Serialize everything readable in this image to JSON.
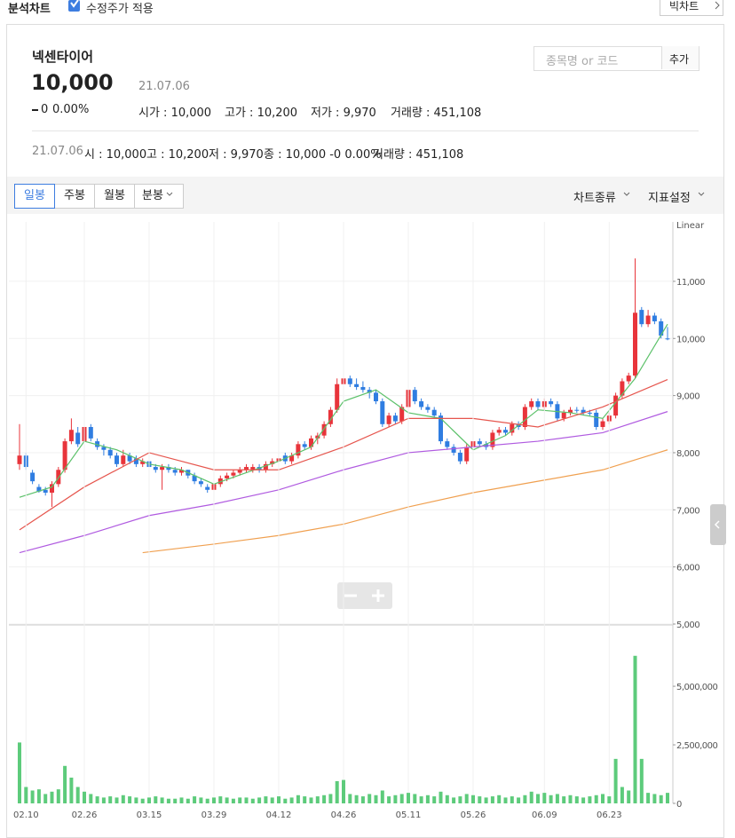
{
  "top": {
    "title": "분석차트",
    "checkbox": "수정주가 적용",
    "button": "빅차트"
  },
  "stock": {
    "name": "넥센타이어",
    "price": "10,000",
    "date": "21.07.06",
    "change": "0",
    "change_pct": "0.00%",
    "stats": [
      "시가 : 10,000",
      "고가 : 10,200",
      "저가 : 9,970",
      "거래량 : 451,108"
    ]
  },
  "search": {
    "placeholder": "종목명 or 코드",
    "button": "추가"
  },
  "ohlc_row": {
    "date": "21.07.06",
    "items": [
      "시 : 10,000",
      "고 : 10,200",
      "저 : 9,970",
      "종 : 10,000 -0 0.00%",
      "거래량 : 451,108"
    ]
  },
  "tabs": {
    "left": [
      "일봉",
      "주봉",
      "월봉",
      "분봉"
    ],
    "right": [
      "차트종류",
      "지표설정"
    ]
  },
  "chart_data": [
    {
      "type": "candlestick",
      "scale_label": "Linear",
      "up_color": "#e8343b",
      "down_color": "#2f7de1",
      "ylim": [
        5000,
        12040
      ],
      "yticks": [
        {
          "value": 5000,
          "label": "5,000"
        },
        {
          "value": 6000,
          "label": "6,000"
        },
        {
          "value": 7000,
          "label": "7,000"
        },
        {
          "value": 8000,
          "label": "8,000"
        },
        {
          "value": 9000,
          "label": "9,000"
        },
        {
          "value": 10000,
          "label": "10,000"
        },
        {
          "value": 11000,
          "label": "11,000"
        }
      ],
      "grid": true,
      "ohlc": [
        [
          7800,
          8500,
          7700,
          7950
        ],
        [
          7950,
          8000,
          7700,
          7750
        ],
        [
          7650,
          7700,
          7450,
          7500
        ],
        [
          7400,
          7450,
          7300,
          7320
        ],
        [
          7350,
          7400,
          7250,
          7300
        ],
        [
          7300,
          7500,
          7050,
          7450
        ],
        [
          7450,
          7750,
          7400,
          7700
        ],
        [
          7700,
          8250,
          7650,
          8200
        ],
        [
          8200,
          8600,
          8150,
          8400
        ],
        [
          8350,
          8450,
          8100,
          8150
        ],
        [
          8200,
          8500,
          8150,
          8450
        ],
        [
          8450,
          8500,
          8200,
          8250
        ],
        [
          8200,
          8250,
          8050,
          8100
        ],
        [
          8100,
          8150,
          7950,
          8050
        ],
        [
          8050,
          8100,
          7900,
          7950
        ],
        [
          7950,
          8000,
          7750,
          7800
        ],
        [
          7800,
          8050,
          7750,
          7950
        ],
        [
          7950,
          8000,
          7800,
          7850
        ],
        [
          7900,
          7950,
          7750,
          7800
        ],
        [
          7800,
          7900,
          7750,
          7850
        ],
        [
          7850,
          7900,
          7700,
          7750
        ],
        [
          7750,
          7800,
          7650,
          7700
        ],
        [
          7700,
          7800,
          7350,
          7750
        ],
        [
          7750,
          7800,
          7650,
          7700
        ],
        [
          7700,
          7750,
          7600,
          7650
        ],
        [
          7650,
          7750,
          7600,
          7700
        ],
        [
          7700,
          7700,
          7550,
          7600
        ],
        [
          7600,
          7650,
          7450,
          7500
        ],
        [
          7500,
          7550,
          7400,
          7450
        ],
        [
          7400,
          7450,
          7300,
          7350
        ],
        [
          7350,
          7500,
          7300,
          7450
        ],
        [
          7450,
          7600,
          7400,
          7550
        ],
        [
          7550,
          7650,
          7500,
          7600
        ],
        [
          7600,
          7700,
          7550,
          7650
        ],
        [
          7650,
          7750,
          7600,
          7700
        ],
        [
          7700,
          7800,
          7650,
          7750
        ],
        [
          7700,
          7800,
          7650,
          7750
        ],
        [
          7750,
          7800,
          7650,
          7700
        ],
        [
          7700,
          7850,
          7650,
          7800
        ],
        [
          7800,
          7900,
          7750,
          7850
        ],
        [
          7850,
          7950,
          7800,
          7900
        ],
        [
          7950,
          8000,
          7800,
          7850
        ],
        [
          7850,
          8000,
          7800,
          7950
        ],
        [
          7950,
          8200,
          7900,
          8150
        ],
        [
          8150,
          8200,
          8050,
          8100
        ],
        [
          8100,
          8300,
          8050,
          8250
        ],
        [
          8250,
          8350,
          8150,
          8300
        ],
        [
          8300,
          8550,
          8250,
          8500
        ],
        [
          8500,
          8800,
          8450,
          8750
        ],
        [
          8750,
          9300,
          8700,
          9200
        ],
        [
          9200,
          9400,
          9150,
          9300
        ],
        [
          9300,
          9350,
          9150,
          9200
        ],
        [
          9200,
          9300,
          9100,
          9150
        ],
        [
          9150,
          9250,
          9050,
          9100
        ],
        [
          9100,
          9150,
          8950,
          9050
        ],
        [
          9050,
          9100,
          8850,
          8900
        ],
        [
          8900,
          8950,
          8450,
          8500
        ],
        [
          8500,
          8700,
          8450,
          8650
        ],
        [
          8650,
          8700,
          8500,
          8550
        ],
        [
          8550,
          8850,
          8500,
          8800
        ],
        [
          8800,
          9150,
          8750,
          9100
        ],
        [
          9100,
          9150,
          8850,
          8900
        ],
        [
          8900,
          8950,
          8750,
          8800
        ],
        [
          8800,
          8850,
          8700,
          8750
        ],
        [
          8750,
          8800,
          8600,
          8650
        ],
        [
          8650,
          8700,
          8150,
          8200
        ],
        [
          8200,
          8250,
          8050,
          8100
        ],
        [
          8100,
          8150,
          7950,
          8000
        ],
        [
          8000,
          8050,
          7800,
          7850
        ],
        [
          7850,
          8150,
          7800,
          8100
        ],
        [
          8100,
          8250,
          8050,
          8200
        ],
        [
          8200,
          8250,
          8100,
          8150
        ],
        [
          8150,
          8200,
          8050,
          8100
        ],
        [
          8100,
          8400,
          8050,
          8350
        ],
        [
          8350,
          8450,
          8300,
          8400
        ],
        [
          8400,
          8450,
          8300,
          8350
        ],
        [
          8350,
          8550,
          8300,
          8500
        ],
        [
          8500,
          8550,
          8400,
          8450
        ],
        [
          8450,
          8850,
          8400,
          8800
        ],
        [
          8800,
          8950,
          8750,
          8900
        ],
        [
          8900,
          8950,
          8750,
          8800
        ],
        [
          8800,
          8950,
          8750,
          8900
        ],
        [
          8900,
          8950,
          8800,
          8850
        ],
        [
          8850,
          8900,
          8550,
          8600
        ],
        [
          8600,
          8750,
          8550,
          8700
        ],
        [
          8700,
          8800,
          8650,
          8750
        ],
        [
          8750,
          8800,
          8700,
          8750
        ],
        [
          8750,
          8800,
          8650,
          8700
        ],
        [
          8700,
          8750,
          8650,
          8700
        ],
        [
          8700,
          8750,
          8400,
          8450
        ],
        [
          8450,
          8600,
          8400,
          8550
        ],
        [
          8550,
          8700,
          8500,
          8650
        ],
        [
          8650,
          9050,
          8600,
          9000
        ],
        [
          9000,
          9300,
          8950,
          9250
        ],
        [
          9250,
          9400,
          9200,
          9350
        ],
        [
          9350,
          11400,
          9300,
          10450
        ],
        [
          10500,
          10550,
          10200,
          10250
        ],
        [
          10250,
          10500,
          10200,
          10400
        ],
        [
          10400,
          10450,
          10250,
          10300
        ],
        [
          10300,
          10350,
          10000,
          10050
        ],
        [
          10000,
          10200,
          9970,
          10000
        ]
      ],
      "lines": [
        {
          "color": "#5cc16a",
          "x": [
            0,
            5,
            10,
            15,
            20,
            25,
            30,
            35,
            40,
            45,
            50,
            55,
            60,
            65,
            70,
            75,
            80,
            85,
            90,
            95,
            100
          ],
          "values": [
            7220,
            7400,
            8200,
            8050,
            7800,
            7700,
            7450,
            7650,
            7850,
            8100,
            8900,
            9100,
            8700,
            8600,
            8050,
            8300,
            8750,
            8700,
            8600,
            9300,
            10250
          ]
        },
        {
          "color": "#e6564e",
          "x": [
            0,
            10,
            20,
            30,
            40,
            50,
            60,
            70,
            80,
            90,
            100
          ],
          "values": [
            6650,
            7400,
            8000,
            7700,
            7700,
            8100,
            8600,
            8600,
            8450,
            8800,
            9280
          ]
        },
        {
          "color": "#b05be0",
          "x": [
            0,
            10,
            20,
            30,
            40,
            50,
            60,
            70,
            80,
            90,
            100
          ],
          "values": [
            6250,
            6550,
            6900,
            7100,
            7350,
            7700,
            8000,
            8100,
            8200,
            8350,
            8720
          ]
        },
        {
          "color": "#f0a050",
          "x": [
            19,
            30,
            40,
            50,
            60,
            70,
            80,
            90,
            100
          ],
          "values": [
            6250,
            6400,
            6550,
            6750,
            7050,
            7300,
            7500,
            7700,
            8050
          ]
        }
      ]
    },
    {
      "type": "bar",
      "color": "#5dcb7b",
      "ylim": [
        0,
        7580000
      ],
      "yticks": [
        0,
        {
          "value": 2500000,
          "label": "2,500,000"
        },
        {
          "value": 5000000,
          "label": "5,000,000"
        }
      ],
      "categories": [
        null,
        "02.10",
        null,
        null,
        null,
        null,
        null,
        null,
        null,
        null,
        "02.26",
        null,
        null,
        null,
        null,
        null,
        null,
        null,
        null,
        null,
        "03.15",
        null,
        null,
        null,
        null,
        null,
        null,
        null,
        null,
        null,
        "03.29",
        null,
        null,
        null,
        null,
        null,
        null,
        null,
        null,
        null,
        "04.12",
        null,
        null,
        null,
        null,
        null,
        null,
        null,
        null,
        null,
        "04.26",
        null,
        null,
        null,
        null,
        null,
        null,
        null,
        null,
        null,
        "05.11",
        null,
        null,
        null,
        null,
        null,
        null,
        null,
        null,
        null,
        "05.26",
        null,
        null,
        null,
        null,
        null,
        null,
        null,
        null,
        null,
        null,
        "06.09",
        null,
        null,
        null,
        null,
        null,
        null,
        null,
        null,
        null,
        "06.23",
        null,
        null,
        null,
        null,
        null,
        null,
        null,
        null,
        null
      ],
      "values": [
        2600000,
        700000,
        550000,
        600000,
        400000,
        500000,
        600000,
        1600000,
        1100000,
        700000,
        500000,
        400000,
        300000,
        250000,
        300000,
        250000,
        350000,
        300000,
        250000,
        200000,
        250000,
        300000,
        250000,
        200000,
        200000,
        250000,
        200000,
        300000,
        250000,
        200000,
        250000,
        300000,
        250000,
        200000,
        250000,
        250000,
        200000,
        250000,
        300000,
        250000,
        300000,
        200000,
        250000,
        350000,
        300000,
        250000,
        300000,
        350000,
        400000,
        950000,
        1000000,
        400000,
        350000,
        300000,
        400000,
        350000,
        550000,
        300000,
        350000,
        400000,
        450000,
        400000,
        300000,
        350000,
        300000,
        500000,
        350000,
        250000,
        300000,
        400000,
        350000,
        300000,
        250000,
        300000,
        350000,
        250000,
        300000,
        250000,
        350000,
        500000,
        400000,
        450000,
        350000,
        400000,
        300000,
        350000,
        300000,
        250000,
        300000,
        350000,
        400000,
        300000,
        1900000,
        700000,
        550000,
        6300000,
        1900000,
        450000,
        400000,
        350000,
        450000
      ]
    }
  ]
}
